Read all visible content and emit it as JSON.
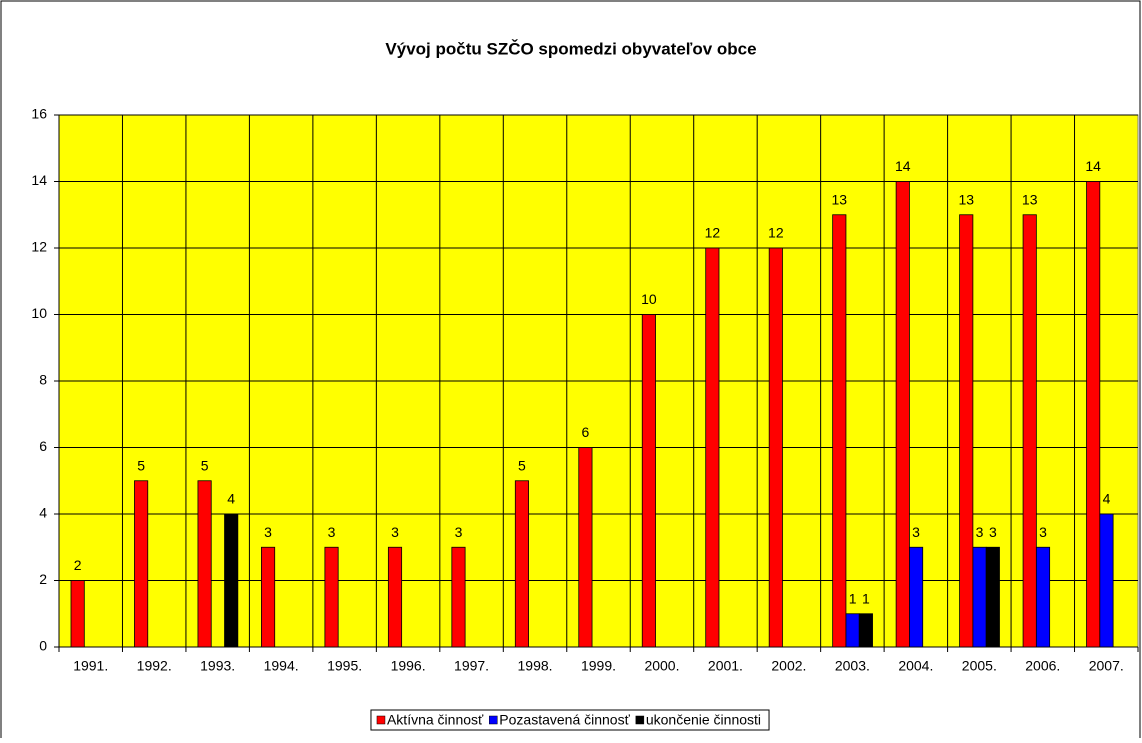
{
  "chart_data": {
    "type": "bar",
    "title": "Vývoj počtu SZČO spomedzi obyvateľov obce",
    "categories": [
      "1991.",
      "1992.",
      "1993.",
      "1994.",
      "1995.",
      "1996.",
      "1997.",
      "1998.",
      "1999.",
      "2000.",
      "2001.",
      "2002.",
      "2003.",
      "2004.",
      "2005.",
      "2006.",
      "2007."
    ],
    "series": [
      {
        "name": "Aktívna činnosť",
        "color": "#ff0000",
        "values": [
          2,
          5,
          5,
          3,
          3,
          3,
          3,
          5,
          6,
          10,
          12,
          12,
          13,
          14,
          13,
          13,
          14
        ]
      },
      {
        "name": "Pozastavená činnosť",
        "color": "#0000ff",
        "values": [
          null,
          null,
          null,
          null,
          null,
          null,
          null,
          null,
          null,
          null,
          null,
          null,
          1,
          3,
          3,
          3,
          4
        ]
      },
      {
        "name": "ukončenie činnosti",
        "color": "#000000",
        "values": [
          null,
          null,
          4,
          null,
          null,
          null,
          null,
          null,
          null,
          null,
          null,
          null,
          1,
          null,
          3,
          null,
          null
        ]
      }
    ],
    "ylim": [
      0,
      16
    ],
    "yticks": [
      0,
      2,
      4,
      6,
      8,
      10,
      12,
      14,
      16
    ],
    "grid": true,
    "background": "#ffff00",
    "legend": "bottom"
  }
}
